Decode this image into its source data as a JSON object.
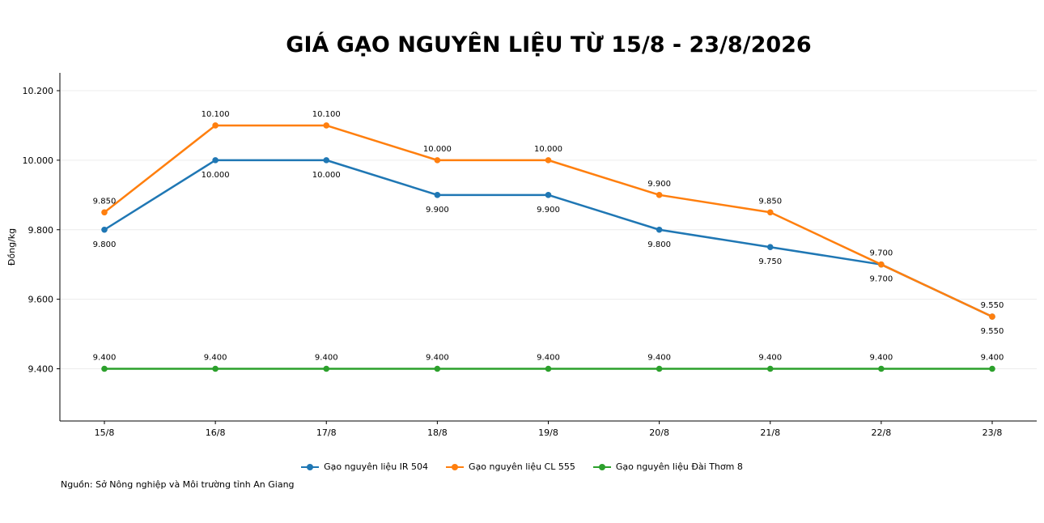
{
  "chart_data": {
    "type": "line",
    "title": "GIÁ GẠO NGUYÊN LIỆU TỪ 15/8 - 23/8/2026",
    "xlabel": "",
    "ylabel": "Đồng/kg",
    "categories": [
      "15/8",
      "16/8",
      "17/8",
      "18/8",
      "19/8",
      "20/8",
      "21/8",
      "22/8",
      "23/8"
    ],
    "ylim": [
      9250,
      10250
    ],
    "yticks": [
      9400,
      9600,
      9800,
      10000,
      10200
    ],
    "ytick_labels": [
      "9.400",
      "9.600",
      "9.800",
      "10.000",
      "10.200"
    ],
    "grid": true,
    "legend_position": "bottom-center",
    "series": [
      {
        "name": "Gạo nguyên liệu IR 504",
        "color": "#1f77b4",
        "label_position": "below",
        "values": [
          9800,
          10000,
          10000,
          9900,
          9900,
          9800,
          9750,
          9700,
          9550
        ],
        "labels": [
          "9.800",
          "10.000",
          "10.000",
          "9.900",
          "9.900",
          "9.800",
          "9.750",
          "9.700",
          "9.550"
        ]
      },
      {
        "name": "Gạo nguyên liệu CL 555",
        "color": "#ff7f0e",
        "label_position": "above",
        "values": [
          9850,
          10100,
          10100,
          10000,
          10000,
          9900,
          9850,
          9700,
          9550
        ],
        "labels": [
          "9.850",
          "10.100",
          "10.100",
          "10.000",
          "10.000",
          "9.900",
          "9.850",
          "9.700",
          "9.550"
        ]
      },
      {
        "name": "Gạo nguyên liệu Đài Thơm 8",
        "color": "#2ca02c",
        "label_position": "above",
        "values": [
          9400,
          9400,
          9400,
          9400,
          9400,
          9400,
          9400,
          9400,
          9400
        ],
        "labels": [
          "9.400",
          "9.400",
          "9.400",
          "9.400",
          "9.400",
          "9.400",
          "9.400",
          "9.400",
          "9.400"
        ]
      }
    ]
  },
  "source_note": "Nguồn: Sở Nông nghiệp và Môi trường tỉnh An Giang"
}
